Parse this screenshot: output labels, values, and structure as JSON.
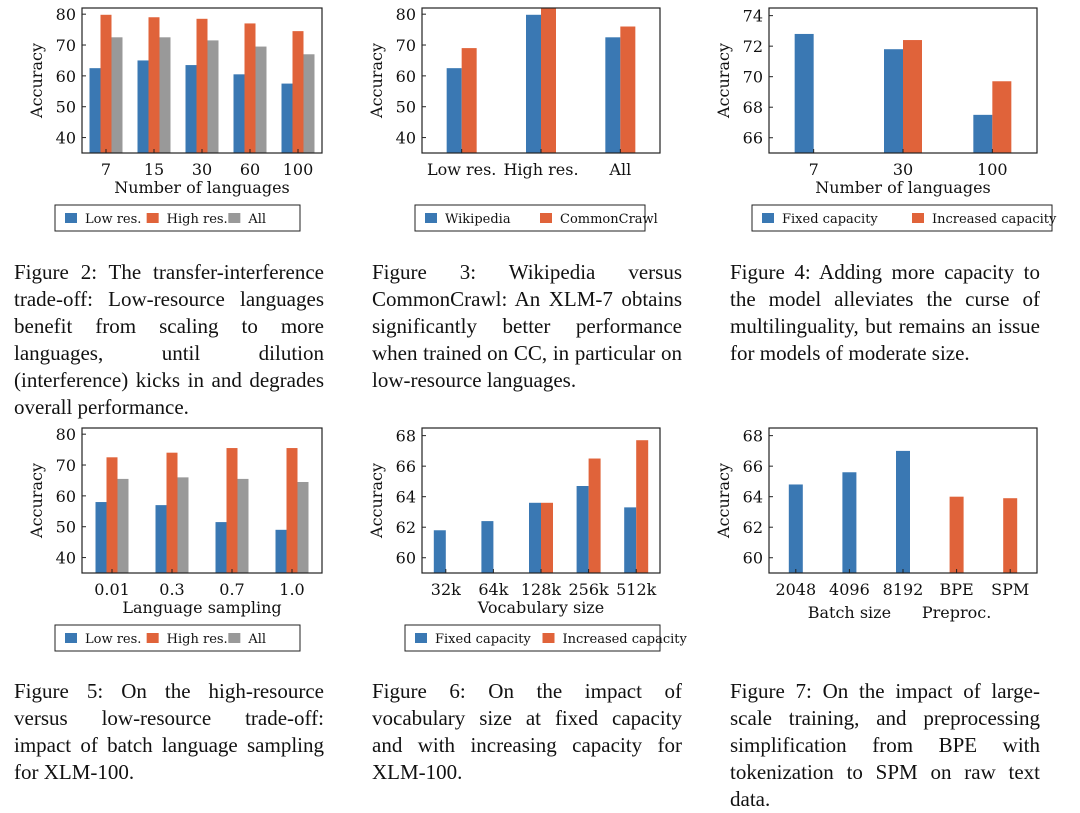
{
  "colors": {
    "blue": "#3a78b3",
    "orange": "#e0633a",
    "gray": "#999999",
    "frame": "#222222"
  },
  "chart_data": [
    {
      "id": "fig2",
      "type": "bar",
      "ylabel": "Accuracy",
      "xlabel": "Number of languages",
      "ylim": [
        35,
        82
      ],
      "yticks": [
        40,
        50,
        60,
        70,
        80
      ],
      "categories": [
        "7",
        "15",
        "30",
        "60",
        "100"
      ],
      "series": [
        {
          "name": "Low res.",
          "color": "blue",
          "values": [
            62.5,
            65,
            63.5,
            60.5,
            57.5
          ]
        },
        {
          "name": "High res.",
          "color": "orange",
          "values": [
            79.8,
            79,
            78.5,
            77,
            74.5
          ]
        },
        {
          "name": "All",
          "color": "gray",
          "values": [
            72.5,
            72.5,
            71.5,
            69.5,
            67
          ]
        }
      ]
    },
    {
      "id": "fig3",
      "type": "bar",
      "ylabel": "Accuracy",
      "xlabel": "",
      "ylim": [
        35,
        82
      ],
      "yticks": [
        40,
        50,
        60,
        70,
        80
      ],
      "categories": [
        "Low res.",
        "High res.",
        "All"
      ],
      "series": [
        {
          "name": "Wikipedia",
          "color": "blue",
          "values": [
            62.5,
            79.8,
            72.5
          ]
        },
        {
          "name": "CommonCrawl",
          "color": "orange",
          "values": [
            69,
            82,
            76
          ]
        }
      ]
    },
    {
      "id": "fig4",
      "type": "bar",
      "ylabel": "Accuracy",
      "xlabel": "Number of languages",
      "ylim": [
        65,
        74.5
      ],
      "yticks": [
        66,
        68,
        70,
        72,
        74
      ],
      "categories": [
        "7",
        "30",
        "100"
      ],
      "series": [
        {
          "name": "Fixed capacity",
          "color": "blue",
          "values": [
            72.8,
            71.8,
            67.5
          ]
        },
        {
          "name": "Increased capacity",
          "color": "orange",
          "values": [
            null,
            72.4,
            69.7
          ]
        }
      ]
    },
    {
      "id": "fig5",
      "type": "bar",
      "ylabel": "Accuracy",
      "xlabel": "Language sampling",
      "ylim": [
        35,
        82
      ],
      "yticks": [
        40,
        50,
        60,
        70,
        80
      ],
      "categories": [
        "0.01",
        "0.3",
        "0.7",
        "1.0"
      ],
      "series": [
        {
          "name": "Low res.",
          "color": "blue",
          "values": [
            58,
            57,
            51.5,
            49
          ]
        },
        {
          "name": "High res.",
          "color": "orange",
          "values": [
            72.5,
            74,
            75.5,
            75.5
          ]
        },
        {
          "name": "All",
          "color": "gray",
          "values": [
            65.5,
            66,
            65.5,
            64.5
          ]
        }
      ]
    },
    {
      "id": "fig6",
      "type": "bar",
      "ylabel": "Accuracy",
      "xlabel": "Vocabulary size",
      "ylim": [
        59,
        68.5
      ],
      "yticks": [
        60,
        62,
        64,
        66,
        68
      ],
      "categories": [
        "32k",
        "64k",
        "128k",
        "256k",
        "512k"
      ],
      "series": [
        {
          "name": "Fixed capacity",
          "color": "blue",
          "values": [
            61.8,
            62.4,
            63.6,
            64.7,
            63.3
          ]
        },
        {
          "name": "Increased capacity",
          "color": "orange",
          "values": [
            null,
            null,
            63.6,
            66.5,
            67.7
          ]
        }
      ]
    },
    {
      "id": "fig7",
      "type": "bar",
      "ylabel": "Accuracy",
      "xlabel": "",
      "group_labels": [
        "Batch size",
        "Preproc."
      ],
      "ylim": [
        59,
        68.5
      ],
      "yticks": [
        60,
        62,
        64,
        66,
        68
      ],
      "categories": [
        "2048",
        "4096",
        "8192",
        "BPE",
        "SPM"
      ],
      "series": [
        {
          "name": "Batch size",
          "color": "blue",
          "values": [
            64.8,
            65.6,
            67,
            null,
            null
          ]
        },
        {
          "name": "Preproc.",
          "color": "orange",
          "values": [
            null,
            null,
            null,
            64,
            63.9
          ]
        }
      ]
    }
  ],
  "captions": {
    "fig2": "Figure 2: The transfer-interference trade-off: Low-resource languages benefit from scaling to more languages, until dilution (interference) kicks in and degrades overall performance.",
    "fig3": "Figure 3: Wikipedia versus CommonCrawl: An XLM-7 obtains significantly better performance when trained on CC, in particular on low-resource languages.",
    "fig4": "Figure 4: Adding more capacity to the model alleviates the curse of multilinguality, but remains an issue for models of moderate size.",
    "fig5": "Figure 5: On the high-resource versus low-resource trade-off: impact of batch language sampling for XLM-100.",
    "fig6": "Figure 6: On the impact of vocabulary size at fixed capacity and with increasing capacity for XLM-100.",
    "fig7": "Figure 7: On the impact of large-scale training, and preprocessing simplification from BPE with tokenization to SPM on raw text data."
  }
}
